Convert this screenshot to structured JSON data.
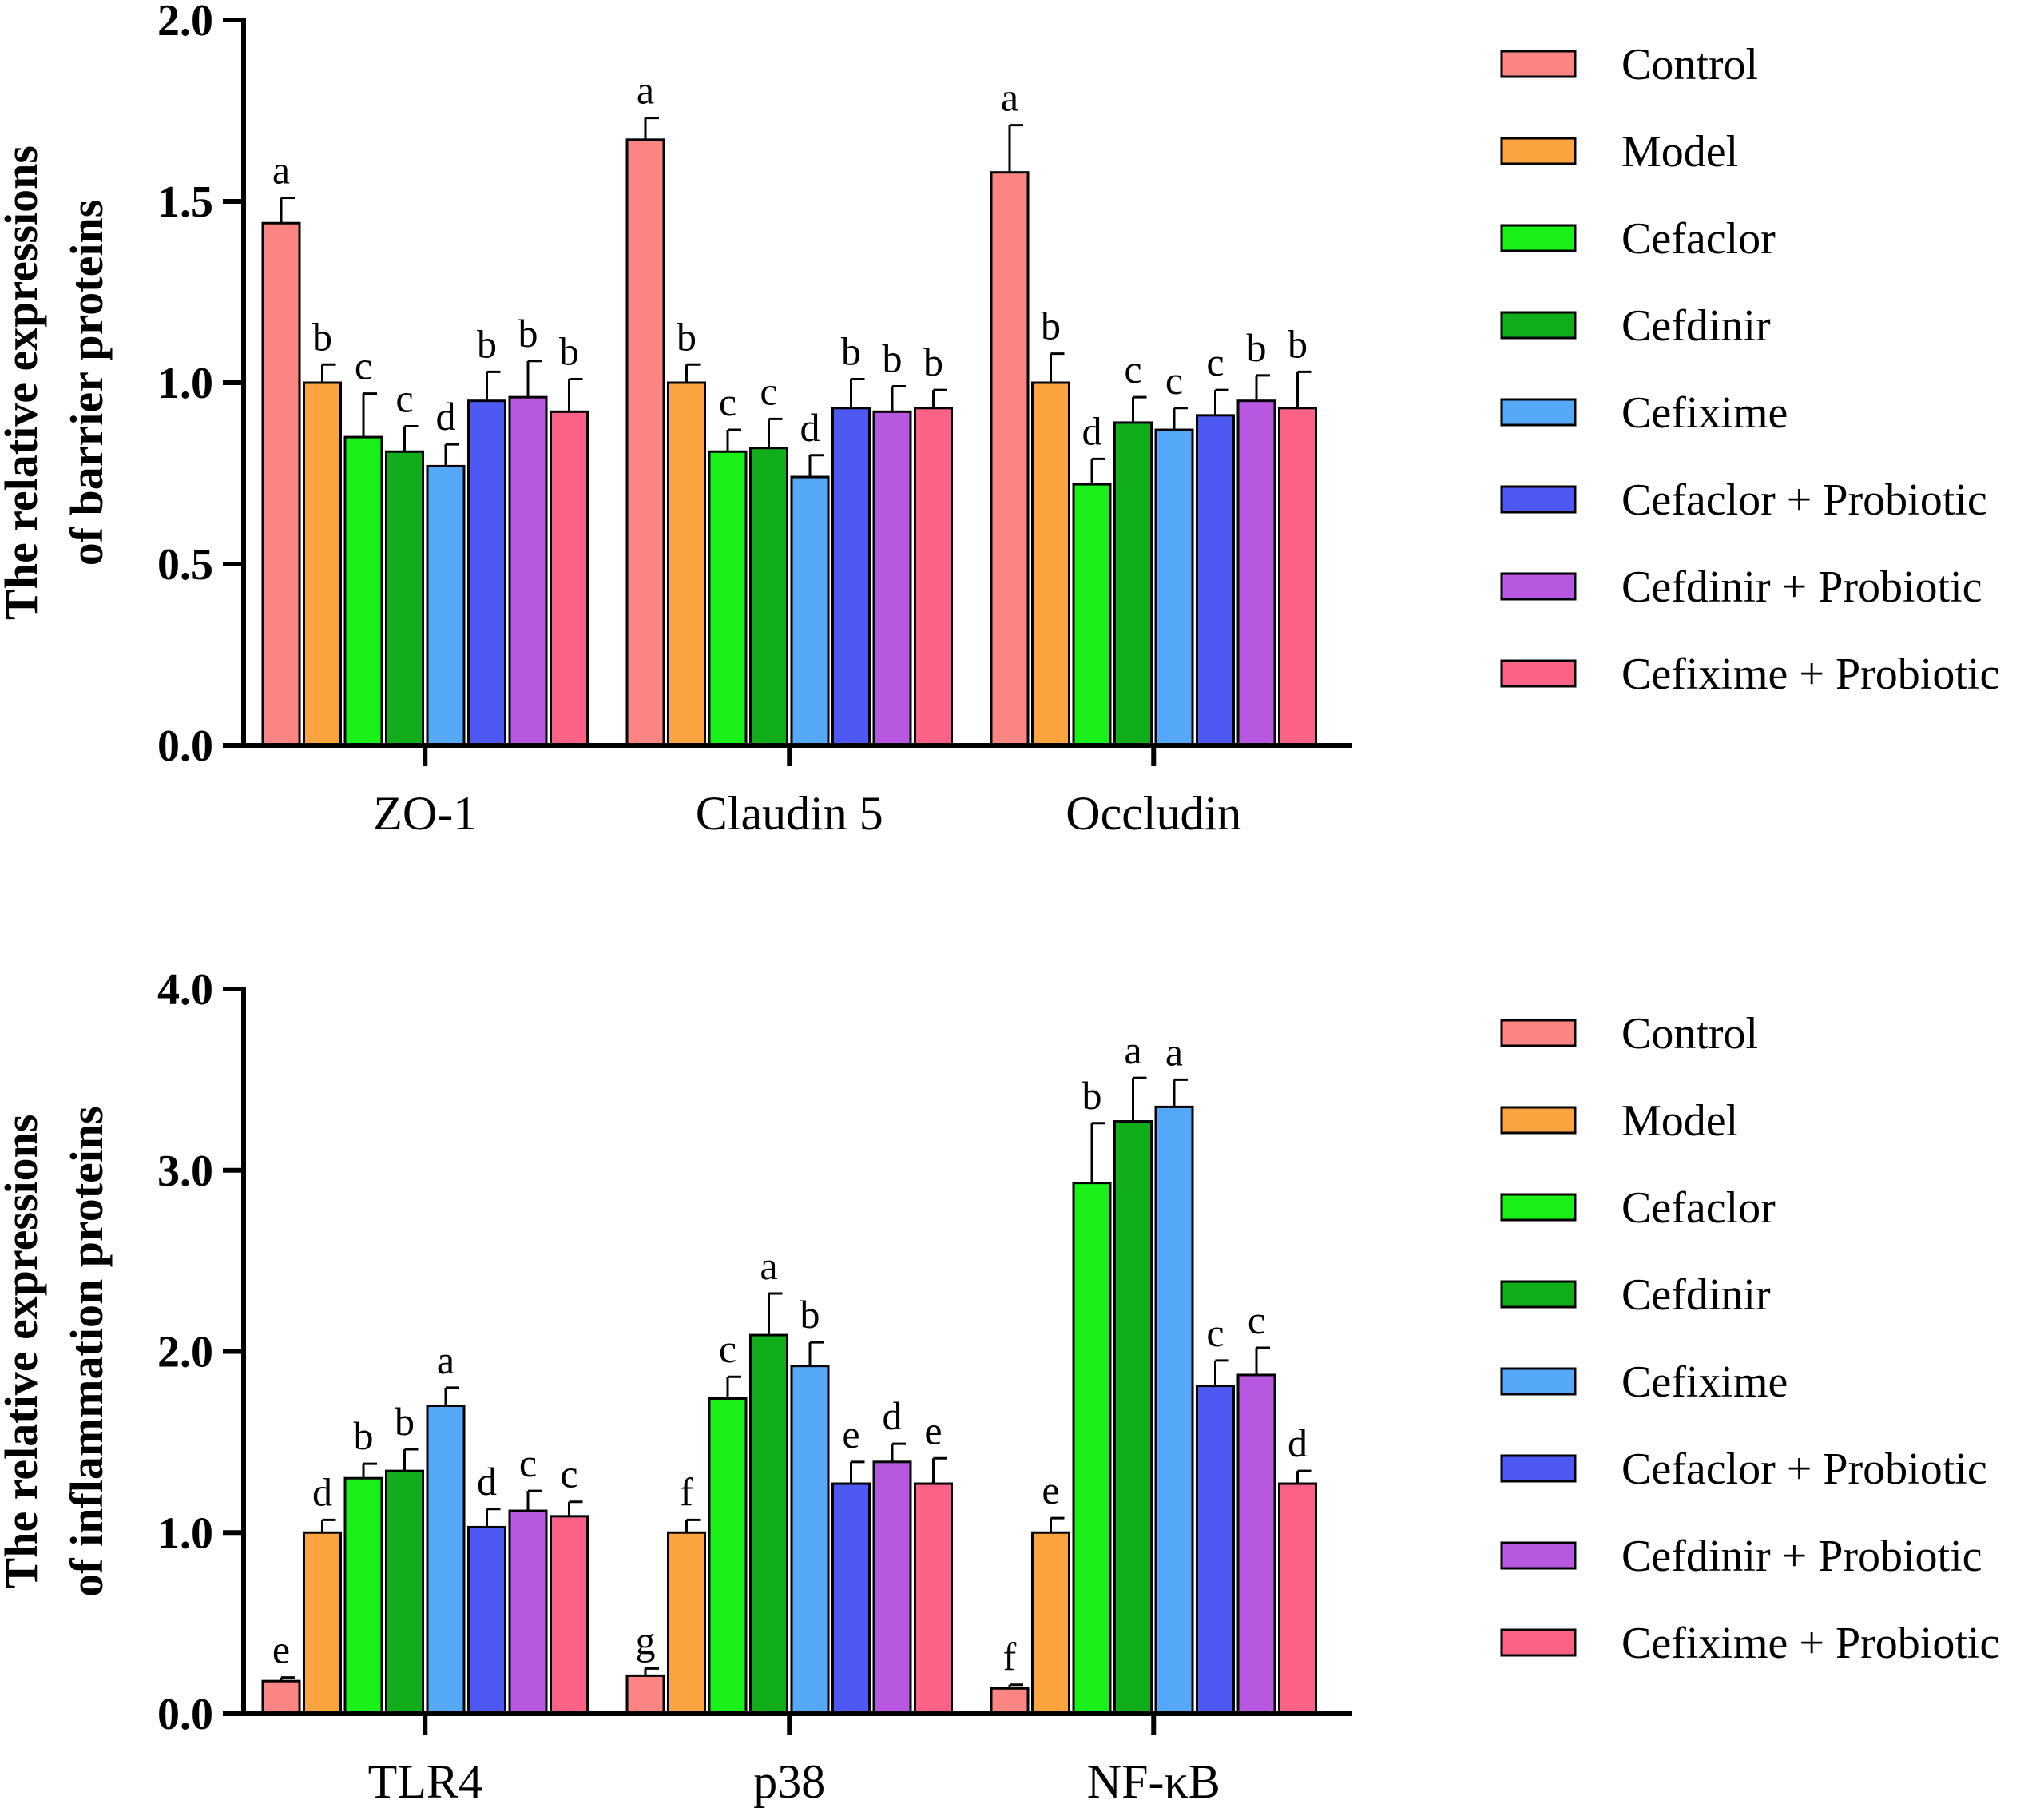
{
  "colors": {
    "Control": "#fa8583",
    "Model": "#fba43f",
    "Cefaclor": "#19f119",
    "Cefdinir": "#0fae1a",
    "Cefixime": "#55a8f7",
    "Cefaclor + Probiotic": "#4e58f2",
    "Cefdinir + Probiotic": "#b858e0",
    "Cefixime + Probiotic": "#fb6285"
  },
  "chart_data": [
    {
      "type": "bar",
      "ylabel_line1": "The relative expressions",
      "ylabel_line2": "of  barrier proteins",
      "xlabel": "",
      "ylim": [
        0,
        2.0
      ],
      "yticks": [
        0,
        0.5,
        1.0,
        1.5,
        2.0
      ],
      "ytick_labels": [
        "0.0",
        "0.5",
        "1.0",
        "1.5",
        "2.0"
      ],
      "categories": [
        "ZO-1",
        "Claudin 5",
        "Occludin"
      ],
      "legend_position": "right",
      "series": [
        {
          "name": "Control",
          "values": [
            1.44,
            1.67,
            1.58
          ],
          "errors": [
            0.07,
            0.06,
            0.13
          ],
          "letters": [
            "a",
            "a",
            "a"
          ]
        },
        {
          "name": "Model",
          "values": [
            1.0,
            1.0,
            1.0
          ],
          "errors": [
            0.05,
            0.05,
            0.08
          ],
          "letters": [
            "b",
            "b",
            "b"
          ]
        },
        {
          "name": "Cefaclor",
          "values": [
            0.85,
            0.81,
            0.72
          ],
          "errors": [
            0.12,
            0.06,
            0.07
          ],
          "letters": [
            "c",
            "c",
            "d"
          ]
        },
        {
          "name": "Cefdinir",
          "values": [
            0.81,
            0.82,
            0.89
          ],
          "errors": [
            0.07,
            0.08,
            0.07
          ],
          "letters": [
            "c",
            "c",
            "c"
          ]
        },
        {
          "name": "Cefixime",
          "values": [
            0.77,
            0.74,
            0.87
          ],
          "errors": [
            0.06,
            0.06,
            0.06
          ],
          "letters": [
            "d",
            "d",
            "c"
          ]
        },
        {
          "name": "Cefaclor + Probiotic",
          "values": [
            0.95,
            0.93,
            0.91
          ],
          "errors": [
            0.08,
            0.08,
            0.07
          ],
          "letters": [
            "b",
            "b",
            "c"
          ]
        },
        {
          "name": "Cefdinir + Probiotic",
          "values": [
            0.96,
            0.92,
            0.95
          ],
          "errors": [
            0.1,
            0.07,
            0.07
          ],
          "letters": [
            "b",
            "b",
            "b"
          ]
        },
        {
          "name": "Cefixime + Probiotic",
          "values": [
            0.92,
            0.93,
            0.93
          ],
          "errors": [
            0.09,
            0.05,
            0.1
          ],
          "letters": [
            "b",
            "b",
            "b"
          ]
        }
      ]
    },
    {
      "type": "bar",
      "ylabel_line1": "The relative expressions",
      "ylabel_line2": "of inflammation proteins",
      "xlabel": "",
      "ylim": [
        0,
        4.0
      ],
      "yticks": [
        0,
        1.0,
        2.0,
        3.0,
        4.0
      ],
      "ytick_labels": [
        "0.0",
        "1.0",
        "2.0",
        "3.0",
        "4.0"
      ],
      "categories": [
        "TLR4",
        "p38",
        "NF-κB"
      ],
      "legend_position": "right",
      "series": [
        {
          "name": "Control",
          "values": [
            0.18,
            0.21,
            0.14
          ],
          "errors": [
            0.02,
            0.04,
            0.02
          ],
          "letters": [
            "e",
            "g",
            "f"
          ]
        },
        {
          "name": "Model",
          "values": [
            1.0,
            1.0,
            1.0
          ],
          "errors": [
            0.07,
            0.07,
            0.08
          ],
          "letters": [
            "d",
            "f",
            "e"
          ]
        },
        {
          "name": "Cefaclor",
          "values": [
            1.3,
            1.74,
            2.93
          ],
          "errors": [
            0.08,
            0.12,
            0.33
          ],
          "letters": [
            "b",
            "c",
            "b"
          ]
        },
        {
          "name": "Cefdinir",
          "values": [
            1.34,
            2.09,
            3.27
          ],
          "errors": [
            0.12,
            0.23,
            0.24
          ],
          "letters": [
            "b",
            "a",
            "a"
          ]
        },
        {
          "name": "Cefixime",
          "values": [
            1.7,
            1.92,
            3.35
          ],
          "errors": [
            0.1,
            0.13,
            0.15
          ],
          "letters": [
            "a",
            "b",
            "a"
          ]
        },
        {
          "name": "Cefaclor + Probiotic",
          "values": [
            1.03,
            1.27,
            1.81
          ],
          "errors": [
            0.1,
            0.12,
            0.14
          ],
          "letters": [
            "d",
            "e",
            "c"
          ]
        },
        {
          "name": "Cefdinir + Probiotic",
          "values": [
            1.12,
            1.39,
            1.87
          ],
          "errors": [
            0.11,
            0.1,
            0.15
          ],
          "letters": [
            "c",
            "d",
            "c"
          ]
        },
        {
          "name": "Cefixime + Probiotic",
          "values": [
            1.09,
            1.27,
            1.27
          ],
          "errors": [
            0.08,
            0.14,
            0.07
          ],
          "letters": [
            "c",
            "e",
            "d"
          ]
        }
      ]
    }
  ]
}
